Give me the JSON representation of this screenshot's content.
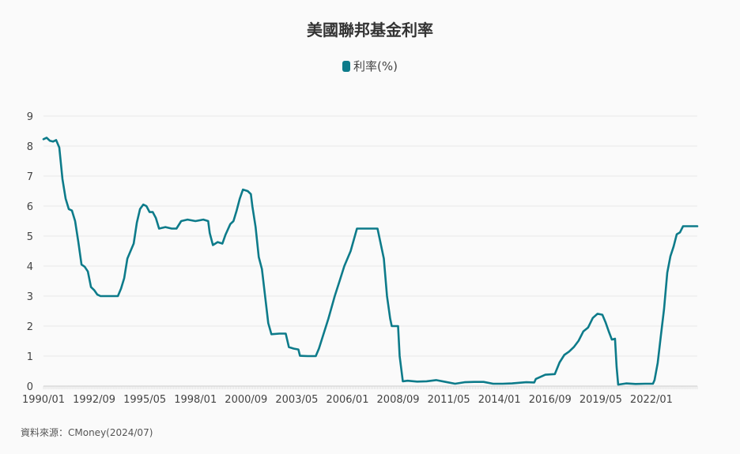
{
  "chart_data": {
    "type": "line",
    "title": "美國聯邦基金利率",
    "legend_position": "top-center",
    "grid": true,
    "ylim": [
      0,
      9
    ],
    "yticks": [
      "0",
      "1",
      "2",
      "3",
      "4",
      "5",
      "6",
      "7",
      "8",
      "9"
    ],
    "xticks": [
      "1990/01",
      "1992/09",
      "1995/05",
      "1998/01",
      "2000/09",
      "2003/05",
      "2006/01",
      "2008/09",
      "2011/05",
      "2014/01",
      "2016/09",
      "2019/05",
      "2022/01"
    ],
    "x_range": [
      "1990/01",
      "2024/06"
    ],
    "series": [
      {
        "name": "利率(%)",
        "color": "#0d7b8a",
        "points": [
          [
            "1990/01",
            8.23
          ],
          [
            "1990/03",
            8.28
          ],
          [
            "1990/05",
            8.18
          ],
          [
            "1990/07",
            8.15
          ],
          [
            "1990/09",
            8.2
          ],
          [
            "1990/11",
            7.95
          ],
          [
            "1991/01",
            6.9
          ],
          [
            "1991/03",
            6.25
          ],
          [
            "1991/05",
            5.9
          ],
          [
            "1991/07",
            5.85
          ],
          [
            "1991/09",
            5.5
          ],
          [
            "1991/11",
            4.8
          ],
          [
            "1992/01",
            4.05
          ],
          [
            "1992/03",
            3.98
          ],
          [
            "1992/05",
            3.82
          ],
          [
            "1992/07",
            3.3
          ],
          [
            "1992/09",
            3.2
          ],
          [
            "1992/11",
            3.05
          ],
          [
            "1993/01",
            3.0
          ],
          [
            "1993/05",
            3.0
          ],
          [
            "1993/09",
            3.0
          ],
          [
            "1993/12",
            3.0
          ],
          [
            "1994/02",
            3.25
          ],
          [
            "1994/04",
            3.6
          ],
          [
            "1994/06",
            4.25
          ],
          [
            "1994/08",
            4.5
          ],
          [
            "1994/10",
            4.75
          ],
          [
            "1994/12",
            5.45
          ],
          [
            "1995/02",
            5.9
          ],
          [
            "1995/04",
            6.05
          ],
          [
            "1995/06",
            6.0
          ],
          [
            "1995/08",
            5.8
          ],
          [
            "1995/10",
            5.8
          ],
          [
            "1995/12",
            5.6
          ],
          [
            "1996/02",
            5.25
          ],
          [
            "1996/06",
            5.3
          ],
          [
            "1996/10",
            5.25
          ],
          [
            "1997/01",
            5.25
          ],
          [
            "1997/04",
            5.5
          ],
          [
            "1997/08",
            5.55
          ],
          [
            "1998/01",
            5.5
          ],
          [
            "1998/06",
            5.55
          ],
          [
            "1998/09",
            5.5
          ],
          [
            "1998/10",
            5.1
          ],
          [
            "1998/12",
            4.7
          ],
          [
            "1999/03",
            4.8
          ],
          [
            "1999/06",
            4.75
          ],
          [
            "1999/08",
            5.05
          ],
          [
            "1999/11",
            5.4
          ],
          [
            "2000/01",
            5.5
          ],
          [
            "2000/03",
            5.85
          ],
          [
            "2000/05",
            6.25
          ],
          [
            "2000/07",
            6.55
          ],
          [
            "2000/10",
            6.5
          ],
          [
            "2000/12",
            6.4
          ],
          [
            "2001/01",
            5.98
          ],
          [
            "2001/03",
            5.3
          ],
          [
            "2001/05",
            4.3
          ],
          [
            "2001/07",
            3.9
          ],
          [
            "2001/09",
            3.0
          ],
          [
            "2001/11",
            2.1
          ],
          [
            "2002/01",
            1.73
          ],
          [
            "2002/06",
            1.75
          ],
          [
            "2002/10",
            1.75
          ],
          [
            "2002/12",
            1.3
          ],
          [
            "2003/03",
            1.25
          ],
          [
            "2003/06",
            1.22
          ],
          [
            "2003/07",
            1.01
          ],
          [
            "2003/12",
            1.0
          ],
          [
            "2004/05",
            1.0
          ],
          [
            "2004/07",
            1.25
          ],
          [
            "2004/10",
            1.75
          ],
          [
            "2005/01",
            2.25
          ],
          [
            "2005/05",
            3.0
          ],
          [
            "2005/08",
            3.5
          ],
          [
            "2005/11",
            4.0
          ],
          [
            "2006/03",
            4.5
          ],
          [
            "2006/07",
            5.25
          ],
          [
            "2006/12",
            5.25
          ],
          [
            "2007/05",
            5.25
          ],
          [
            "2007/08",
            5.25
          ],
          [
            "2007/10",
            4.75
          ],
          [
            "2007/12",
            4.25
          ],
          [
            "2008/02",
            3.0
          ],
          [
            "2008/04",
            2.25
          ],
          [
            "2008/05",
            2.0
          ],
          [
            "2008/09",
            2.0
          ],
          [
            "2008/10",
            1.0
          ],
          [
            "2008/12",
            0.16
          ],
          [
            "2009/03",
            0.18
          ],
          [
            "2009/09",
            0.15
          ],
          [
            "2010/03",
            0.16
          ],
          [
            "2010/09",
            0.2
          ],
          [
            "2011/03",
            0.14
          ],
          [
            "2011/09",
            0.08
          ],
          [
            "2012/03",
            0.13
          ],
          [
            "2012/09",
            0.14
          ],
          [
            "2013/03",
            0.14
          ],
          [
            "2013/09",
            0.08
          ],
          [
            "2014/03",
            0.08
          ],
          [
            "2014/09",
            0.09
          ],
          [
            "2015/06",
            0.13
          ],
          [
            "2015/11",
            0.12
          ],
          [
            "2015/12",
            0.24
          ],
          [
            "2016/06",
            0.38
          ],
          [
            "2016/12",
            0.4
          ],
          [
            "2017/03",
            0.79
          ],
          [
            "2017/06",
            1.04
          ],
          [
            "2017/09",
            1.15
          ],
          [
            "2017/12",
            1.3
          ],
          [
            "2018/03",
            1.51
          ],
          [
            "2018/06",
            1.82
          ],
          [
            "2018/09",
            1.95
          ],
          [
            "2018/12",
            2.27
          ],
          [
            "2019/03",
            2.41
          ],
          [
            "2019/06",
            2.38
          ],
          [
            "2019/08",
            2.13
          ],
          [
            "2019/10",
            1.83
          ],
          [
            "2019/12",
            1.55
          ],
          [
            "2020/02",
            1.58
          ],
          [
            "2020/03",
            0.65
          ],
          [
            "2020/04",
            0.05
          ],
          [
            "2020/09",
            0.09
          ],
          [
            "2021/03",
            0.07
          ],
          [
            "2021/09",
            0.08
          ],
          [
            "2022/02",
            0.08
          ],
          [
            "2022/03",
            0.2
          ],
          [
            "2022/05",
            0.77
          ],
          [
            "2022/07",
            1.68
          ],
          [
            "2022/09",
            2.56
          ],
          [
            "2022/11",
            3.78
          ],
          [
            "2023/01",
            4.33
          ],
          [
            "2023/03",
            4.65
          ],
          [
            "2023/05",
            5.06
          ],
          [
            "2023/07",
            5.12
          ],
          [
            "2023/09",
            5.33
          ],
          [
            "2023/12",
            5.33
          ],
          [
            "2024/03",
            5.33
          ],
          [
            "2024/06",
            5.33
          ]
        ]
      }
    ]
  },
  "source": "資料來源：CMoney(2024/07)"
}
